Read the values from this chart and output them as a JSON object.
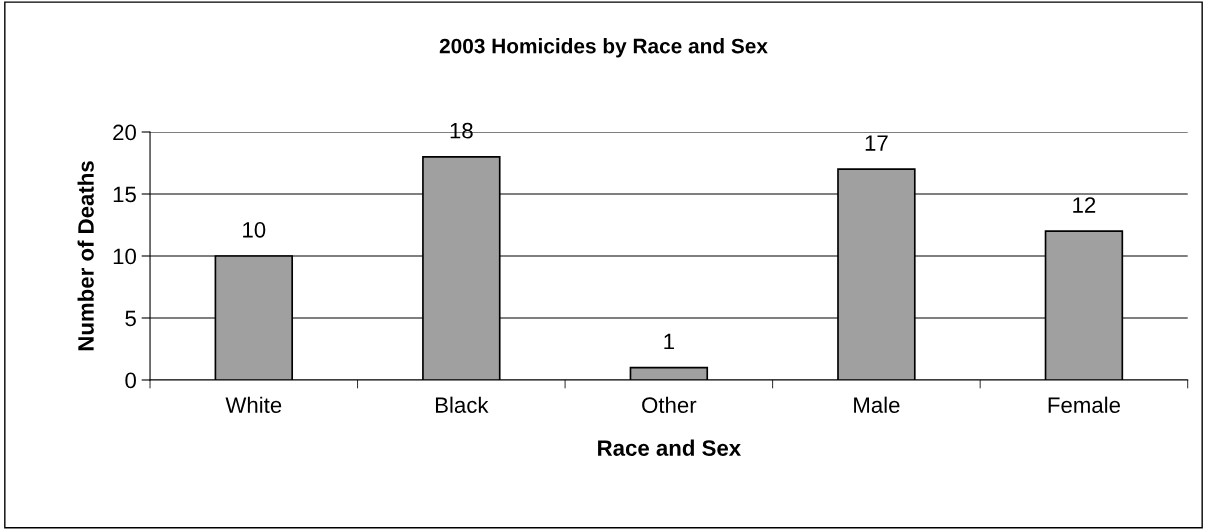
{
  "chart_data": {
    "type": "bar",
    "title": "2003 Homicides by Race and Sex",
    "xlabel": "Race and Sex",
    "ylabel": "Number of Deaths",
    "categories": [
      "White",
      "Black",
      "Other",
      "Male",
      "Female"
    ],
    "values": [
      10,
      18,
      1,
      17,
      12
    ],
    "color": "#a0a0a0",
    "ylim": [
      0,
      20
    ],
    "yticks": [
      0,
      5,
      10,
      15,
      20
    ],
    "grid": "y",
    "data_labels": true
  }
}
